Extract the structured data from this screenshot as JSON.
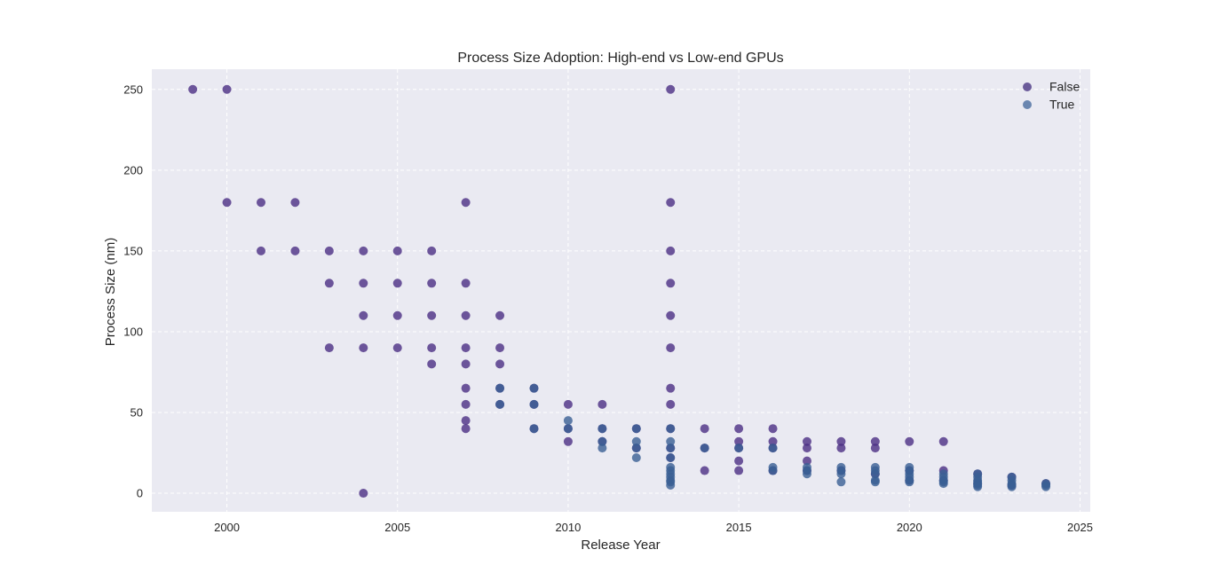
{
  "chart_data": {
    "type": "scatter",
    "title": "Process Size Adoption: High-end vs Low-end GPUs",
    "xlabel": "Release Year",
    "ylabel": "Process Size (nm)",
    "xlim": [
      1997.8,
      2025.3
    ],
    "ylim": [
      -11.5,
      262.5
    ],
    "xticks": [
      2000,
      2005,
      2010,
      2015,
      2020,
      2025
    ],
    "yticks": [
      0,
      50,
      100,
      150,
      200,
      250
    ],
    "grid": true,
    "legend_position": "top-right",
    "colors": {
      "background": "#eaeaf2",
      "grid": "#ffffff"
    },
    "series": [
      {
        "name": "False",
        "color": "#4b2e83",
        "legend_color": "#6b5b9a",
        "points": [
          [
            1999,
            250
          ],
          [
            2000,
            250
          ],
          [
            2000,
            180
          ],
          [
            2001,
            180
          ],
          [
            2001,
            150
          ],
          [
            2002,
            180
          ],
          [
            2002,
            150
          ],
          [
            2003,
            150
          ],
          [
            2003,
            130
          ],
          [
            2003,
            90
          ],
          [
            2004,
            150
          ],
          [
            2004,
            130
          ],
          [
            2004,
            110
          ],
          [
            2004,
            90
          ],
          [
            2004,
            0
          ],
          [
            2005,
            150
          ],
          [
            2005,
            130
          ],
          [
            2005,
            110
          ],
          [
            2005,
            90
          ],
          [
            2006,
            150
          ],
          [
            2006,
            130
          ],
          [
            2006,
            110
          ],
          [
            2006,
            90
          ],
          [
            2006,
            80
          ],
          [
            2007,
            180
          ],
          [
            2007,
            130
          ],
          [
            2007,
            110
          ],
          [
            2007,
            90
          ],
          [
            2007,
            80
          ],
          [
            2007,
            65
          ],
          [
            2007,
            55
          ],
          [
            2007,
            45
          ],
          [
            2007,
            40
          ],
          [
            2008,
            110
          ],
          [
            2008,
            90
          ],
          [
            2008,
            80
          ],
          [
            2008,
            65
          ],
          [
            2008,
            55
          ],
          [
            2009,
            65
          ],
          [
            2009,
            55
          ],
          [
            2009,
            40
          ],
          [
            2010,
            55
          ],
          [
            2010,
            40
          ],
          [
            2010,
            32
          ],
          [
            2011,
            55
          ],
          [
            2011,
            40
          ],
          [
            2011,
            32
          ],
          [
            2012,
            40
          ],
          [
            2012,
            28
          ],
          [
            2013,
            250
          ],
          [
            2013,
            180
          ],
          [
            2013,
            150
          ],
          [
            2013,
            130
          ],
          [
            2013,
            110
          ],
          [
            2013,
            90
          ],
          [
            2013,
            65
          ],
          [
            2013,
            55
          ],
          [
            2013,
            40
          ],
          [
            2013,
            28
          ],
          [
            2013,
            22
          ],
          [
            2014,
            40
          ],
          [
            2014,
            28
          ],
          [
            2014,
            14
          ],
          [
            2015,
            40
          ],
          [
            2015,
            32
          ],
          [
            2015,
            28
          ],
          [
            2015,
            20
          ],
          [
            2015,
            14
          ],
          [
            2016,
            40
          ],
          [
            2016,
            32
          ],
          [
            2016,
            28
          ],
          [
            2016,
            14
          ],
          [
            2017,
            32
          ],
          [
            2017,
            28
          ],
          [
            2017,
            20
          ],
          [
            2017,
            14
          ],
          [
            2018,
            32
          ],
          [
            2018,
            28
          ],
          [
            2018,
            14
          ],
          [
            2019,
            32
          ],
          [
            2019,
            28
          ],
          [
            2019,
            12
          ],
          [
            2020,
            32
          ],
          [
            2020,
            14
          ],
          [
            2020,
            8
          ],
          [
            2021,
            32
          ],
          [
            2021,
            14
          ],
          [
            2021,
            8
          ],
          [
            2022,
            12
          ],
          [
            2022,
            6
          ],
          [
            2023,
            10
          ],
          [
            2023,
            5
          ],
          [
            2024,
            6
          ]
        ]
      },
      {
        "name": "True",
        "color": "#3a5f94",
        "legend_color": "#6a86b0",
        "points": [
          [
            2008,
            65
          ],
          [
            2008,
            55
          ],
          [
            2009,
            65
          ],
          [
            2009,
            55
          ],
          [
            2009,
            40
          ],
          [
            2010,
            45
          ],
          [
            2010,
            40
          ],
          [
            2011,
            40
          ],
          [
            2011,
            32
          ],
          [
            2011,
            28
          ],
          [
            2012,
            40
          ],
          [
            2012,
            32
          ],
          [
            2012,
            28
          ],
          [
            2012,
            22
          ],
          [
            2013,
            40
          ],
          [
            2013,
            32
          ],
          [
            2013,
            28
          ],
          [
            2013,
            22
          ],
          [
            2013,
            16
          ],
          [
            2013,
            14
          ],
          [
            2013,
            12
          ],
          [
            2013,
            10
          ],
          [
            2013,
            8
          ],
          [
            2013,
            7
          ],
          [
            2013,
            5
          ],
          [
            2014,
            28
          ],
          [
            2015,
            28
          ],
          [
            2016,
            28
          ],
          [
            2016,
            16
          ],
          [
            2016,
            14
          ],
          [
            2017,
            16
          ],
          [
            2017,
            14
          ],
          [
            2017,
            12
          ],
          [
            2018,
            16
          ],
          [
            2018,
            14
          ],
          [
            2018,
            12
          ],
          [
            2018,
            7
          ],
          [
            2019,
            16
          ],
          [
            2019,
            14
          ],
          [
            2019,
            12
          ],
          [
            2019,
            8
          ],
          [
            2019,
            7
          ],
          [
            2020,
            16
          ],
          [
            2020,
            14
          ],
          [
            2020,
            12
          ],
          [
            2020,
            10
          ],
          [
            2020,
            8
          ],
          [
            2020,
            7
          ],
          [
            2021,
            12
          ],
          [
            2021,
            10
          ],
          [
            2021,
            8
          ],
          [
            2021,
            7
          ],
          [
            2021,
            6
          ],
          [
            2022,
            12
          ],
          [
            2022,
            10
          ],
          [
            2022,
            8
          ],
          [
            2022,
            7
          ],
          [
            2022,
            6
          ],
          [
            2022,
            5
          ],
          [
            2022,
            4
          ],
          [
            2023,
            10
          ],
          [
            2023,
            8
          ],
          [
            2023,
            6
          ],
          [
            2023,
            5
          ],
          [
            2023,
            4
          ],
          [
            2024,
            6
          ],
          [
            2024,
            5
          ],
          [
            2024,
            4
          ]
        ]
      }
    ]
  }
}
